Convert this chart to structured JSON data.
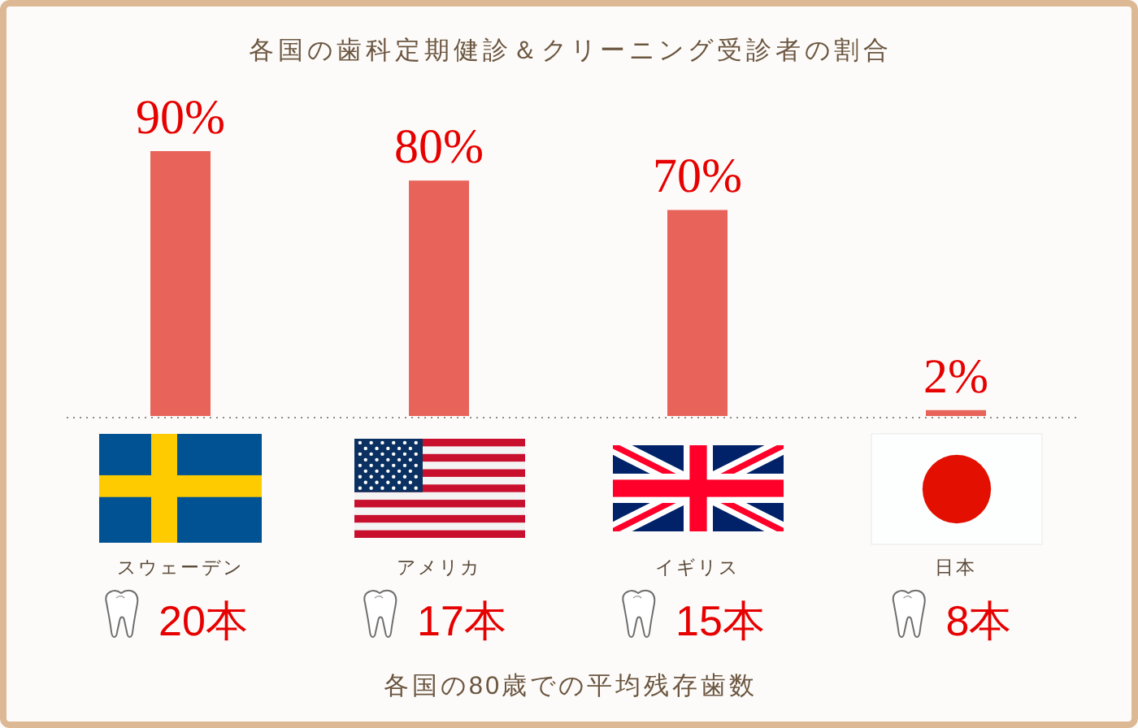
{
  "chart_data": [
    {
      "type": "bar",
      "title": "各国の歯科定期健診＆クリーニング受診者の割合",
      "categories": [
        "スウェーデン",
        "アメリカ",
        "イギリス",
        "日本"
      ],
      "values": [
        90,
        80,
        70,
        2
      ],
      "value_labels": [
        "90%",
        "80%",
        "70%",
        "2%"
      ],
      "color": "#e8645a"
    },
    {
      "type": "other",
      "title": "各国の80歳での平均残存歯数",
      "values": [
        20,
        17,
        15,
        8
      ],
      "value_labels": [
        "20本",
        "17本",
        "15本",
        "8本"
      ],
      "color": "#e60000"
    }
  ]
}
